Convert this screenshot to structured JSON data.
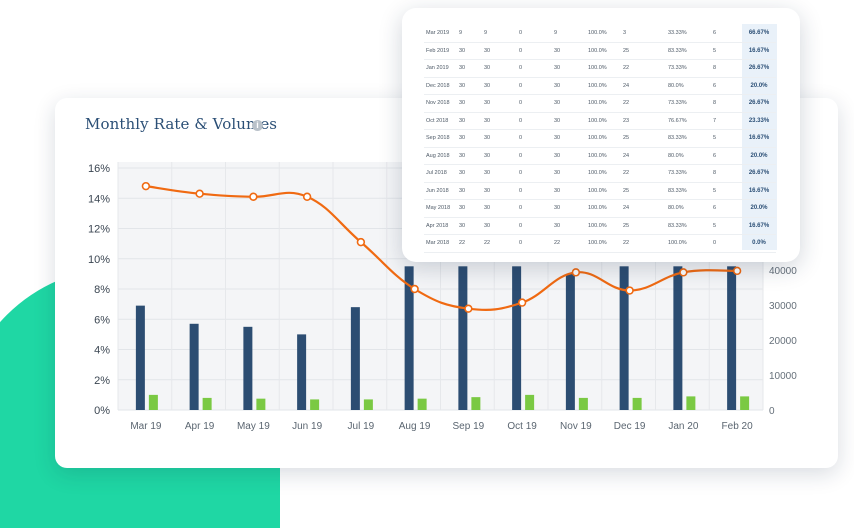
{
  "card": {
    "title": "Monthly Rate & Volumes",
    "info_icon": "info-icon"
  },
  "colors": {
    "bar": "#2c4d72",
    "bar_small": "#7ac943",
    "line": "#f06a12",
    "accent_blob": "#1fd7a4"
  },
  "chart_data": {
    "type": "bar",
    "categories": [
      "Mar 19",
      "Apr 19",
      "May 19",
      "Jun 19",
      "Jul 19",
      "Aug 19",
      "Sep 19",
      "Oct 19",
      "Nov 19",
      "Dec 19",
      "Jan 20",
      "Feb 20"
    ],
    "left_axis": {
      "ticks": [
        "0%",
        "2%",
        "4%",
        "6%",
        "8%",
        "10%",
        "12%",
        "14%",
        "16%"
      ],
      "range": [
        0,
        16
      ]
    },
    "right_axis": {
      "ticks": [
        "0",
        "10000",
        "20000",
        "30000",
        "40000"
      ],
      "range": [
        0,
        40000
      ]
    },
    "series": [
      {
        "kind": "bar",
        "axis": "left",
        "values": [
          6.9,
          5.7,
          5.5,
          5.0,
          6.8,
          9.5,
          9.5,
          9.5,
          9.0,
          9.5,
          9.5,
          9.5
        ]
      },
      {
        "kind": "bar",
        "axis": "left",
        "values": [
          1.0,
          0.8,
          0.75,
          0.7,
          0.7,
          0.75,
          0.85,
          1.0,
          0.8,
          0.8,
          0.9,
          0.9
        ]
      },
      {
        "kind": "line",
        "axis": "left",
        "values": [
          14.8,
          14.3,
          14.1,
          14.1,
          11.1,
          8.0,
          6.7,
          7.1,
          9.1,
          7.9,
          9.1,
          9.2
        ]
      }
    ],
    "grid": true
  },
  "table": {
    "rows": [
      [
        "Mar 2019",
        "9",
        "9",
        "0",
        "9",
        "100.0%",
        "3",
        "33.33%",
        "6",
        "66.67%"
      ],
      [
        "Feb 2019",
        "30",
        "30",
        "0",
        "30",
        "100.0%",
        "25",
        "83.33%",
        "5",
        "16.67%"
      ],
      [
        "Jan 2019",
        "30",
        "30",
        "0",
        "30",
        "100.0%",
        "22",
        "73.33%",
        "8",
        "26.67%"
      ],
      [
        "Dec 2018",
        "30",
        "30",
        "0",
        "30",
        "100.0%",
        "24",
        "80.0%",
        "6",
        "20.0%"
      ],
      [
        "Nov 2018",
        "30",
        "30",
        "0",
        "30",
        "100.0%",
        "22",
        "73.33%",
        "8",
        "26.67%"
      ],
      [
        "Oct 2018",
        "30",
        "30",
        "0",
        "30",
        "100.0%",
        "23",
        "76.67%",
        "7",
        "23.33%"
      ],
      [
        "Sep 2018",
        "30",
        "30",
        "0",
        "30",
        "100.0%",
        "25",
        "83.33%",
        "5",
        "16.67%"
      ],
      [
        "Aug 2018",
        "30",
        "30",
        "0",
        "30",
        "100.0%",
        "24",
        "80.0%",
        "6",
        "20.0%"
      ],
      [
        "Jul 2018",
        "30",
        "30",
        "0",
        "30",
        "100.0%",
        "22",
        "73.33%",
        "8",
        "26.67%"
      ],
      [
        "Jun 2018",
        "30",
        "30",
        "0",
        "30",
        "100.0%",
        "25",
        "83.33%",
        "5",
        "16.67%"
      ],
      [
        "May 2018",
        "30",
        "30",
        "0",
        "30",
        "100.0%",
        "24",
        "80.0%",
        "6",
        "20.0%"
      ],
      [
        "Apr 2018",
        "30",
        "30",
        "0",
        "30",
        "100.0%",
        "25",
        "83.33%",
        "5",
        "16.67%"
      ],
      [
        "Mar 2018",
        "22",
        "22",
        "0",
        "22",
        "100.0%",
        "22",
        "100.0%",
        "0",
        "0.0%"
      ]
    ]
  }
}
